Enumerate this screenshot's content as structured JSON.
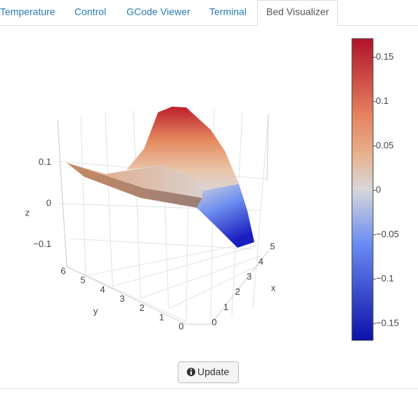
{
  "tabs": [
    "Temperature",
    "Control",
    "GCode Viewer",
    "Terminal",
    "Bed Visualizer"
  ],
  "active_tab": 4,
  "plot": {
    "x_title": "x",
    "y_title": "y",
    "z_title": "z",
    "xticks": [
      0,
      1,
      2,
      3,
      4,
      5
    ],
    "yticks": [
      0,
      1,
      2,
      3,
      4,
      5,
      6
    ],
    "zticks": [
      {
        "value": 0.1,
        "label": "0.1"
      },
      0,
      {
        "value": -0.1,
        "label": "−0.1"
      }
    ],
    "colorbar": {
      "range": [
        -0.169,
        0.171
      ],
      "ticks": [
        0.15,
        0.1,
        0.05,
        0,
        {
          "value": -0.05,
          "label": "−0.05"
        },
        {
          "value": -0.1,
          "label": "−0.1"
        },
        {
          "value": -0.15,
          "label": "−0.15"
        }
      ]
    }
  },
  "button": "Update"
}
